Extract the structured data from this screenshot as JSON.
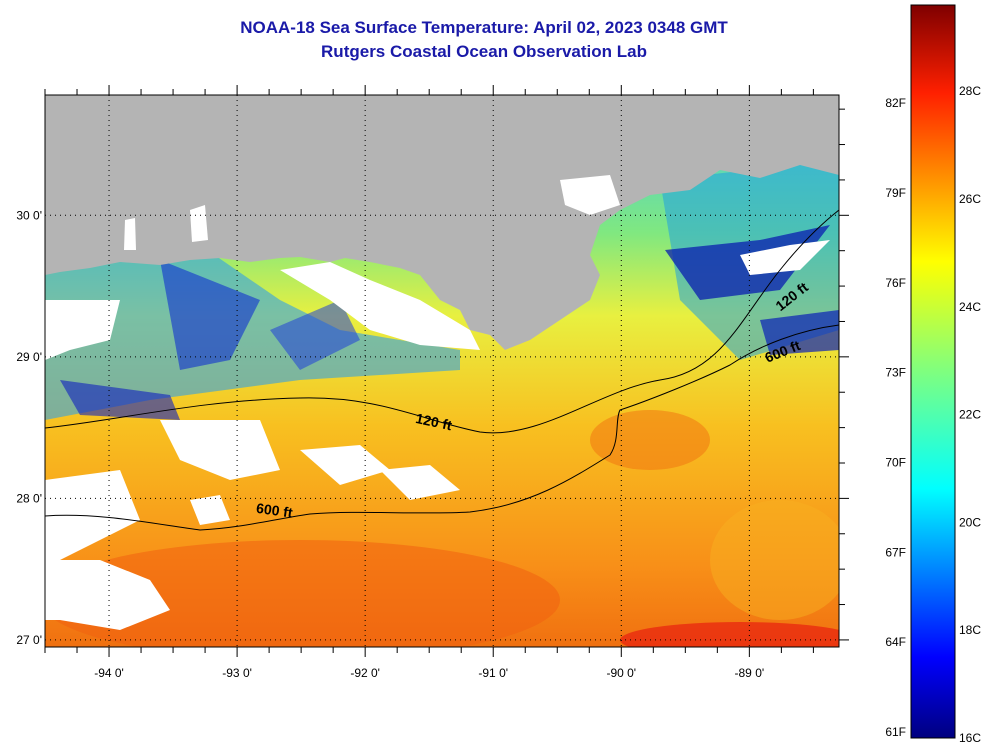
{
  "title": {
    "line1": "NOAA-18 Sea Surface Temperature:  April 02, 2023 0348 GMT",
    "line2": "Rutgers Coastal Ocean Observation Lab"
  },
  "map": {
    "lon_range": [
      -94.5,
      -88.3
    ],
    "lat_range": [
      26.95,
      30.85
    ],
    "lon_ticks": [
      {
        "value": -94,
        "label": "-94 0'"
      },
      {
        "value": -93,
        "label": "-93 0'"
      },
      {
        "value": -92,
        "label": "-92 0'"
      },
      {
        "value": -91,
        "label": "-91 0'"
      },
      {
        "value": -90,
        "label": "-90 0'"
      },
      {
        "value": -89,
        "label": "-89 0'"
      }
    ],
    "lat_ticks": [
      {
        "value": 27,
        "label": "27 0'"
      },
      {
        "value": 28,
        "label": "28 0'"
      },
      {
        "value": 29,
        "label": "29 0'"
      },
      {
        "value": 30,
        "label": "30 0'"
      }
    ],
    "contours": [
      {
        "depth": "120 ft",
        "label": "120 ft"
      },
      {
        "depth": "600 ft",
        "label": "600 ft"
      }
    ],
    "land_color": "#b4b4b4",
    "cloud_color": "#ffffff"
  },
  "colorbar": {
    "min_c": 16,
    "max_c": 29.6,
    "fahrenheit_labels": [
      "82F",
      "79F",
      "76F",
      "73F",
      "70F",
      "67F",
      "64F",
      "61F"
    ],
    "celsius_labels": [
      "28C",
      "26C",
      "24C",
      "22C",
      "20C",
      "18C",
      "16C"
    ]
  }
}
